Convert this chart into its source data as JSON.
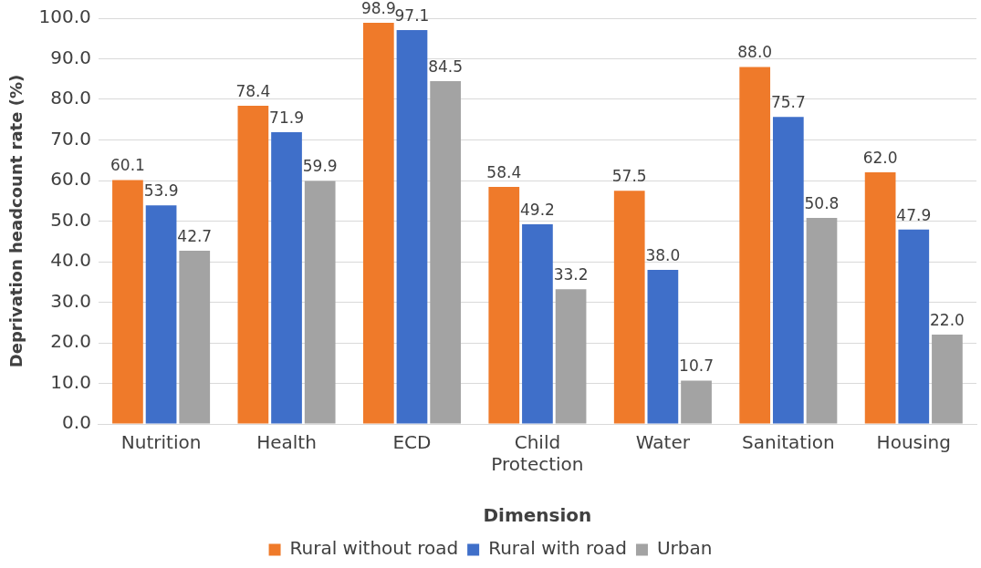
{
  "chart_data": {
    "type": "bar",
    "xlabel": "Dimension",
    "ylabel": "Deprivation headcount rate (%)",
    "categories": [
      "Nutrition",
      "Health",
      "ECD",
      "Child Protection",
      "Water",
      "Sanitation",
      "Housing"
    ],
    "series": [
      {
        "name": "Rural without road",
        "color": "#ef7a2a",
        "values": [
          60.1,
          78.4,
          98.9,
          58.4,
          57.5,
          88.0,
          62.0
        ],
        "value_labels": [
          "60.1",
          "78.4",
          "98.9",
          "58.4",
          "57.5",
          "88.0",
          "62.0"
        ]
      },
      {
        "name": "Rural with road",
        "color": "#3f6fc9",
        "values": [
          53.9,
          71.9,
          97.1,
          49.2,
          38.0,
          75.7,
          47.9
        ],
        "value_labels": [
          "53.9",
          "71.9",
          "97.1",
          "49.2",
          "38.0",
          "75.7",
          "47.9"
        ]
      },
      {
        "name": "Urban",
        "color": "#a3a3a3",
        "values": [
          42.7,
          59.9,
          84.5,
          33.2,
          10.7,
          50.8,
          22.0
        ],
        "value_labels": [
          "42.7",
          "59.9",
          "84.5",
          "33.2",
          "10.7",
          "50.8",
          "22.0"
        ]
      }
    ],
    "ylim": [
      0,
      100
    ],
    "yticks": [
      {
        "value": 0,
        "label": "0.0"
      },
      {
        "value": 10,
        "label": "10.0"
      },
      {
        "value": 20,
        "label": "20.0"
      },
      {
        "value": 30,
        "label": "30.0"
      },
      {
        "value": 40,
        "label": "40.0"
      },
      {
        "value": 50,
        "label": "50.0"
      },
      {
        "value": 60,
        "label": "60.0"
      },
      {
        "value": 70,
        "label": "70.0"
      },
      {
        "value": 80,
        "label": "80.0"
      },
      {
        "value": 90,
        "label": "90.0"
      },
      {
        "value": 100,
        "label": "100.0"
      }
    ],
    "grid": "y",
    "legend": "bottom"
  }
}
